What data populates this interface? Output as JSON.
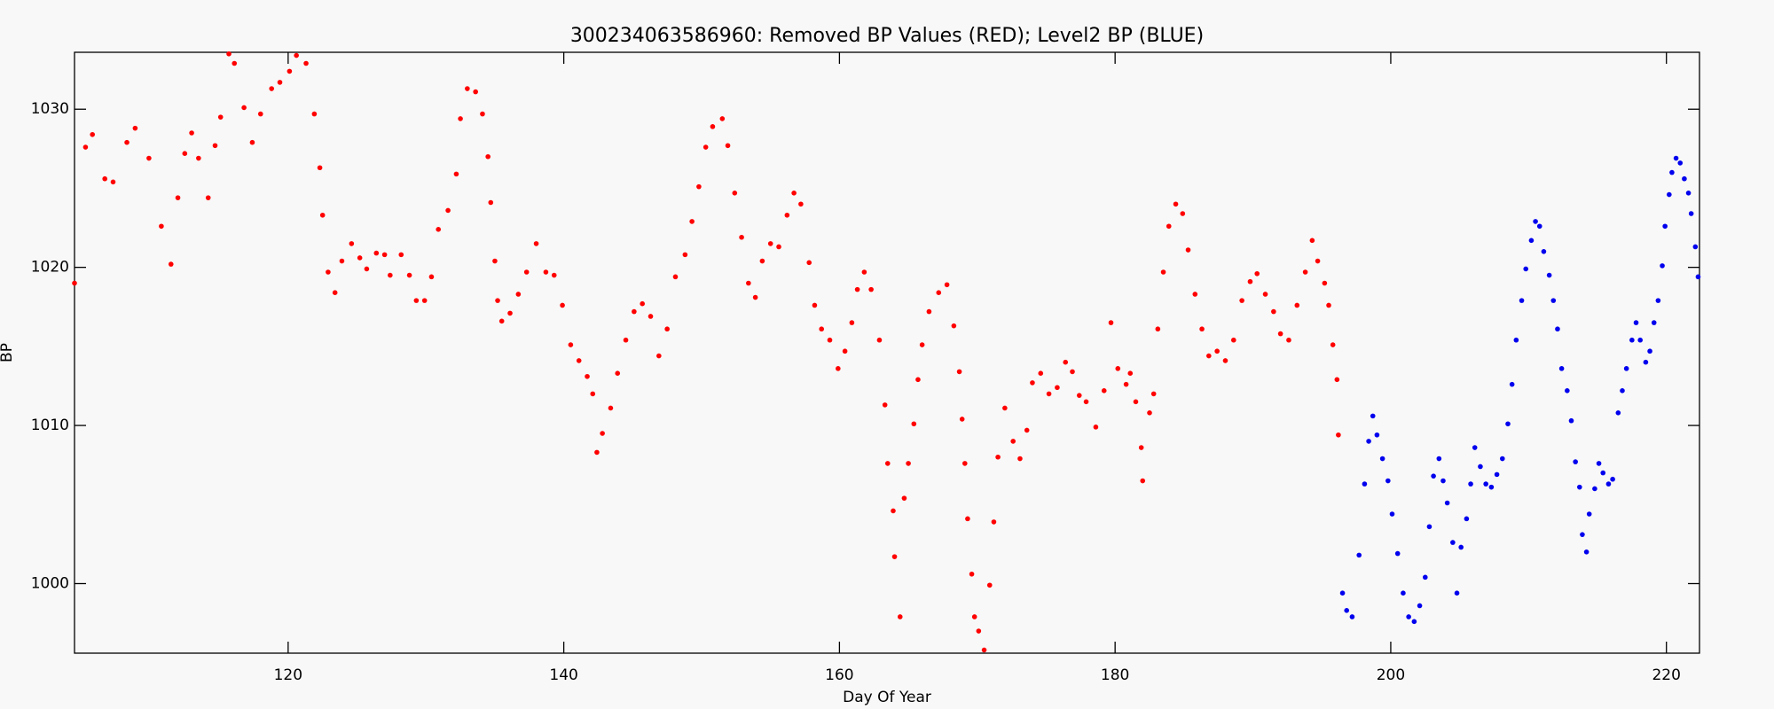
{
  "chart_data": {
    "type": "scatter",
    "title": "300234063586960: Removed BP Values (RED); Level2 BP (BLUE)",
    "xlabel": "Day Of Year",
    "ylabel": "BP",
    "xlim": [
      104.5,
      222.4
    ],
    "ylim": [
      995.6,
      1033.6
    ],
    "xticks": [
      120,
      140,
      160,
      180,
      200,
      220
    ],
    "yticks": [
      1000,
      1010,
      1020,
      1030
    ],
    "series": [
      {
        "color": "#ff0000",
        "x": [
          104.5,
          105.3,
          105.8,
          106.7,
          107.3,
          108.3,
          108.9,
          109.9,
          110.8,
          111.5,
          112,
          112.5,
          113,
          113.5,
          114.2,
          114.7,
          115.1,
          115.7,
          116.1,
          116.8,
          117.4,
          118,
          118.8,
          119.4,
          120.1,
          120.6,
          121.3,
          121.9,
          122.3,
          122.5,
          122.9,
          123.4,
          123.9,
          124.6,
          125.2,
          125.7,
          126.4,
          127,
          127.4,
          128.2,
          128.8,
          129.3,
          129.9,
          130.4,
          130.9,
          131.6,
          132.2,
          132.5,
          133,
          133.6,
          134.1,
          134.5,
          134.7,
          135,
          135.2,
          135.5,
          136.1,
          136.7,
          137.3,
          138,
          138.7,
          139.3,
          139.9,
          140.5,
          141.1,
          141.7,
          142.1,
          142.4,
          142.8,
          143.4,
          143.9,
          144.5,
          145.1,
          145.7,
          146.3,
          146.9,
          147.5,
          148.1,
          148.8,
          149.3,
          149.8,
          150.3,
          150.8,
          151.5,
          151.9,
          152.4,
          152.9,
          153.4,
          153.9,
          154.4,
          155,
          155.6,
          156.2,
          156.7,
          157.2,
          157.8,
          158.2,
          158.7,
          159.3,
          159.9,
          160.4,
          160.9,
          161.3,
          161.8,
          162.3,
          162.9,
          163.3,
          163.5,
          163.9,
          164,
          164.4,
          164.7,
          165,
          165.4,
          165.7,
          166,
          166.5,
          167.2,
          167.8,
          168.3,
          168.7,
          168.9,
          169.1,
          169.3,
          169.6,
          169.8,
          170.1,
          170.5,
          170.9,
          171.2,
          171.5,
          172,
          172.6,
          173.1,
          173.6,
          174,
          174.6,
          175.2,
          175.8,
          176.4,
          176.9,
          177.4,
          177.9,
          178.6,
          179.2,
          179.7,
          180.2,
          180.8,
          181.1,
          181.5,
          181.9,
          182,
          182.5,
          182.8,
          183.1,
          183.5,
          183.9,
          184.4,
          184.9,
          185.3,
          185.8,
          186.3,
          186.8,
          187.4,
          188,
          188.6,
          189.2,
          189.8,
          190.3,
          190.9,
          191.5,
          192,
          192.6,
          193.2,
          193.8,
          194.3,
          194.7,
          195.2,
          195.5,
          195.8,
          196.1,
          196.2
        ],
        "values": [
          1019,
          1027.6,
          1028.4,
          1025.6,
          1025.4,
          1027.9,
          1028.8,
          1026.9,
          1022.6,
          1020.2,
          1024.4,
          1027.2,
          1028.5,
          1026.9,
          1024.4,
          1027.7,
          1029.5,
          1033.5,
          1032.9,
          1030.1,
          1027.9,
          1029.7,
          1031.3,
          1031.7,
          1032.4,
          1033.4,
          1032.9,
          1029.7,
          1026.3,
          1023.3,
          1019.7,
          1018.4,
          1020.4,
          1021.5,
          1020.6,
          1019.9,
          1020.9,
          1020.8,
          1019.5,
          1020.8,
          1019.5,
          1017.9,
          1017.9,
          1019.4,
          1022.4,
          1023.6,
          1025.9,
          1029.4,
          1031.3,
          1031.1,
          1029.7,
          1027,
          1024.1,
          1020.4,
          1017.9,
          1016.6,
          1017.1,
          1018.3,
          1019.7,
          1021.5,
          1019.7,
          1019.5,
          1017.6,
          1015.1,
          1014.1,
          1013.1,
          1012,
          1008.3,
          1009.5,
          1011.1,
          1013.3,
          1015.4,
          1017.2,
          1017.7,
          1016.9,
          1014.4,
          1016.1,
          1019.4,
          1020.8,
          1022.9,
          1025.1,
          1027.6,
          1028.9,
          1029.4,
          1027.7,
          1024.7,
          1021.9,
          1019,
          1018.1,
          1020.4,
          1021.5,
          1021.3,
          1023.3,
          1024.7,
          1024,
          1020.3,
          1017.6,
          1016.1,
          1015.4,
          1013.6,
          1014.7,
          1016.5,
          1018.6,
          1019.7,
          1018.6,
          1015.4,
          1011.3,
          1007.6,
          1004.6,
          1001.7,
          997.9,
          1005.4,
          1007.6,
          1010.1,
          1012.9,
          1015.1,
          1017.2,
          1018.4,
          1018.9,
          1016.3,
          1013.4,
          1010.4,
          1007.6,
          1004.1,
          1000.6,
          997.9,
          997,
          995.8,
          999.9,
          1003.9,
          1008,
          1011.1,
          1009,
          1007.9,
          1009.7,
          1012.7,
          1013.3,
          1012,
          1012.4,
          1014,
          1013.4,
          1011.9,
          1011.5,
          1009.9,
          1012.2,
          1016.5,
          1013.6,
          1012.6,
          1013.3,
          1011.5,
          1008.6,
          1006.5,
          1010.8,
          1012,
          1016.1,
          1019.7,
          1022.6,
          1024,
          1023.4,
          1021.1,
          1018.3,
          1016.1,
          1014.4,
          1014.7,
          1014.1,
          1015.4,
          1017.9,
          1019.1,
          1019.6,
          1018.3,
          1017.2,
          1015.8,
          1015.4,
          1017.6,
          1019.7,
          1021.7,
          1020.4,
          1019,
          1017.6,
          1015.1,
          1012.9,
          1009.4
        ]
      },
      {
        "color": "#0000ee",
        "x": [
          196.5,
          196.8,
          197.2,
          197.7,
          198.1,
          198.4,
          198.7,
          199,
          199.4,
          199.8,
          200.1,
          200.5,
          200.9,
          201.3,
          201.7,
          202.1,
          202.5,
          202.8,
          203.1,
          203.5,
          203.8,
          204.1,
          204.5,
          204.8,
          205.1,
          205.5,
          205.8,
          206.1,
          206.5,
          206.9,
          207.3,
          207.7,
          208.1,
          208.5,
          208.8,
          209.1,
          209.5,
          209.8,
          210.2,
          210.5,
          210.8,
          211.1,
          211.5,
          211.8,
          212.1,
          212.4,
          212.8,
          213.1,
          213.4,
          213.7,
          213.9,
          214.2,
          214.4,
          214.8,
          215.1,
          215.4,
          215.8,
          216.1,
          216.5,
          216.8,
          217.1,
          217.5,
          217.8,
          218.1,
          218.5,
          218.8,
          219.1,
          219.4,
          219.7,
          219.9,
          220.2,
          220.4,
          220.7,
          221,
          221.3,
          221.6,
          221.8,
          222.1,
          222.3
        ],
        "values": [
          999.4,
          998.3,
          997.9,
          1001.8,
          1006.3,
          1009,
          1010.6,
          1009.4,
          1007.9,
          1006.5,
          1004.4,
          1001.9,
          999.4,
          997.9,
          997.6,
          998.6,
          1000.4,
          1003.6,
          1006.8,
          1007.9,
          1006.5,
          1005.1,
          1002.6,
          999.4,
          1002.3,
          1004.1,
          1006.3,
          1008.6,
          1007.4,
          1006.3,
          1006.1,
          1006.9,
          1007.9,
          1010.1,
          1012.6,
          1015.4,
          1017.9,
          1019.9,
          1021.7,
          1022.9,
          1022.6,
          1021,
          1019.5,
          1017.9,
          1016.1,
          1013.6,
          1012.2,
          1010.3,
          1007.7,
          1006.1,
          1003.1,
          1002,
          1004.4,
          1006,
          1007.6,
          1007,
          1006.3,
          1006.6,
          1010.8,
          1012.2,
          1013.6,
          1015.4,
          1016.5,
          1015.4,
          1014,
          1014.7,
          1016.5,
          1017.9,
          1020.1,
          1022.6,
          1024.6,
          1026,
          1026.9,
          1026.6,
          1025.6,
          1024.7,
          1023.4,
          1021.3,
          1019.4
        ]
      }
    ]
  }
}
